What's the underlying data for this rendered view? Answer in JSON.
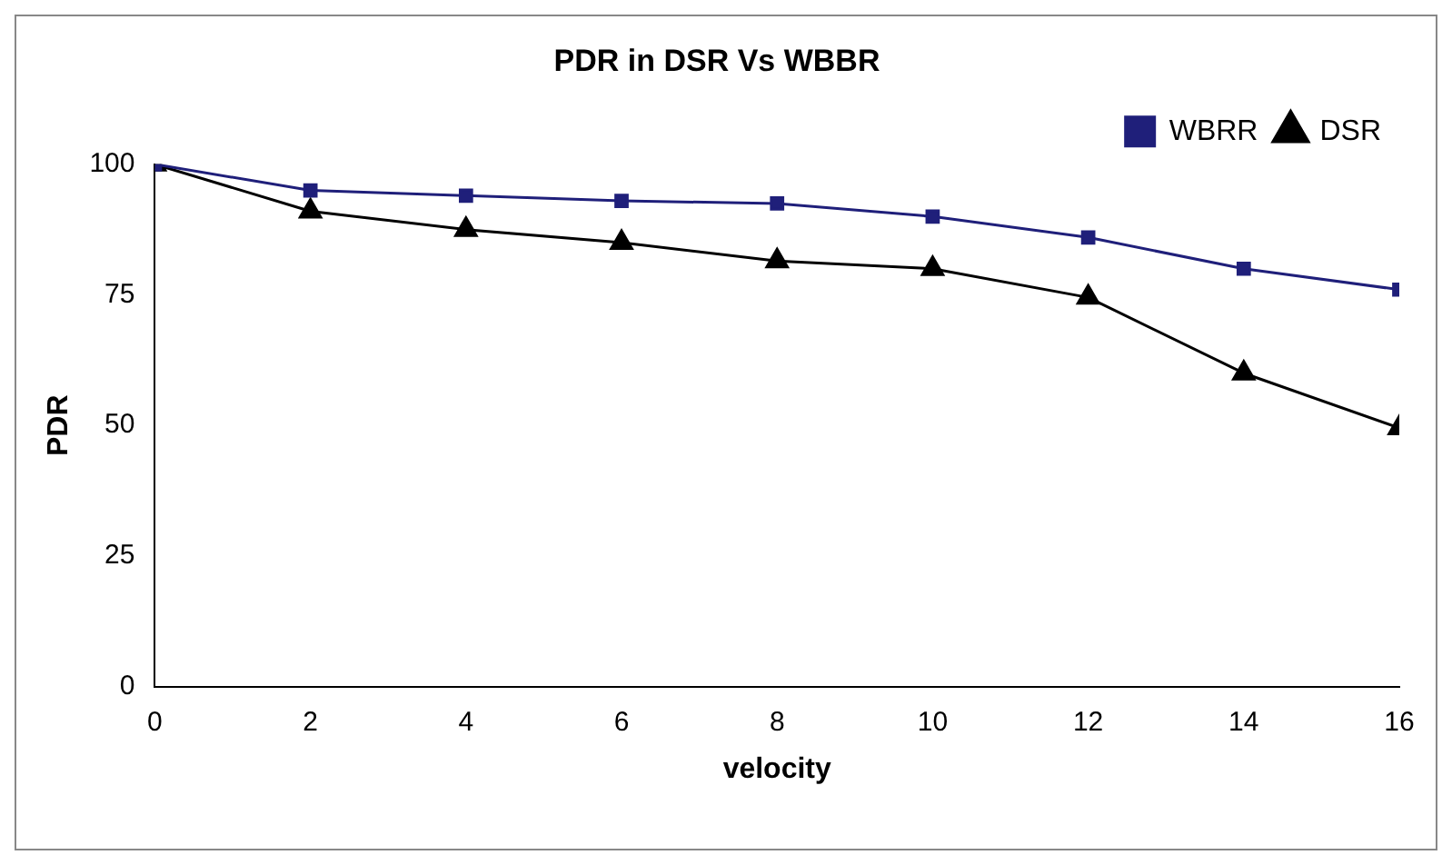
{
  "chart_data": {
    "type": "line",
    "title": "PDR in DSR Vs WBBR",
    "xlabel": "velocity",
    "ylabel": "PDR",
    "x": [
      0,
      2,
      4,
      6,
      8,
      10,
      12,
      14,
      16
    ],
    "series": [
      {
        "name": "WBRR",
        "color": "#1f1f7a",
        "marker": "square",
        "values": [
          100,
          95,
          94,
          93,
          92.5,
          90,
          86,
          80,
          76
        ]
      },
      {
        "name": "DSR",
        "color": "#000000",
        "marker": "triangle",
        "values": [
          100,
          91,
          87.5,
          85,
          81.5,
          80,
          74.5,
          60,
          49.5
        ]
      }
    ],
    "xlim": [
      0,
      16
    ],
    "xticks": [
      0,
      2,
      4,
      6,
      8,
      10,
      12,
      14,
      16
    ],
    "ylim": [
      0,
      100
    ],
    "yticks": [
      0,
      25,
      50,
      75,
      100
    ],
    "grid": false,
    "legend": "top right",
    "line_style": "solid"
  }
}
